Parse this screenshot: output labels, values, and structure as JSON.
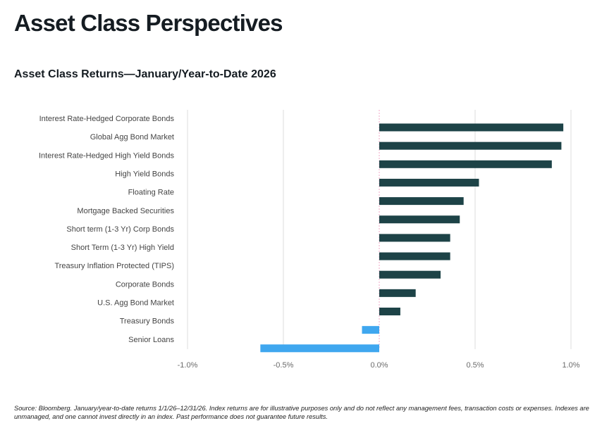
{
  "page_title": "Asset Class Perspectives",
  "chart_data": {
    "type": "bar",
    "orientation": "horizontal",
    "title": "Asset Class Returns—January/Year-to-Date 2026",
    "categories": [
      "Interest Rate-Hedged Corporate Bonds",
      "Global Agg Bond Market",
      "Interest Rate-Hedged High Yield Bonds",
      "High Yield Bonds",
      "Floating Rate",
      "Mortgage Backed Securities",
      "Short term (1-3 Yr) Corp Bonds",
      "Short Term (1-3 Yr) High Yield",
      "Treasury Inflation Protected (TIPS)",
      "Corporate Bonds",
      "U.S. Agg Bond Market",
      "Treasury Bonds",
      "Senior Loans"
    ],
    "values": [
      0.96,
      0.95,
      0.9,
      0.52,
      0.44,
      0.42,
      0.37,
      0.37,
      0.32,
      0.19,
      0.11,
      -0.09,
      -0.62
    ],
    "unit": "%",
    "xlim": [
      -1.0,
      1.0
    ],
    "xticks": [
      -1.0,
      -0.5,
      0.0,
      0.5,
      1.0
    ],
    "xtick_labels": [
      "-1.0%",
      "-0.5%",
      "0.0%",
      "0.5%",
      "1.0%"
    ],
    "grid": "vertical",
    "colors": {
      "positive": "#1d4347",
      "negative": "#3fa7ef"
    }
  },
  "footnote": "Source: Bloomberg. January/year-to-date returns 1/1/26–12/31/26. Index returns are for illustrative purposes only and do not reflect any management fees, transaction costs or expenses. Indexes are unmanaged, and one cannot invest directly in an index. Past performance does not guarantee future results."
}
